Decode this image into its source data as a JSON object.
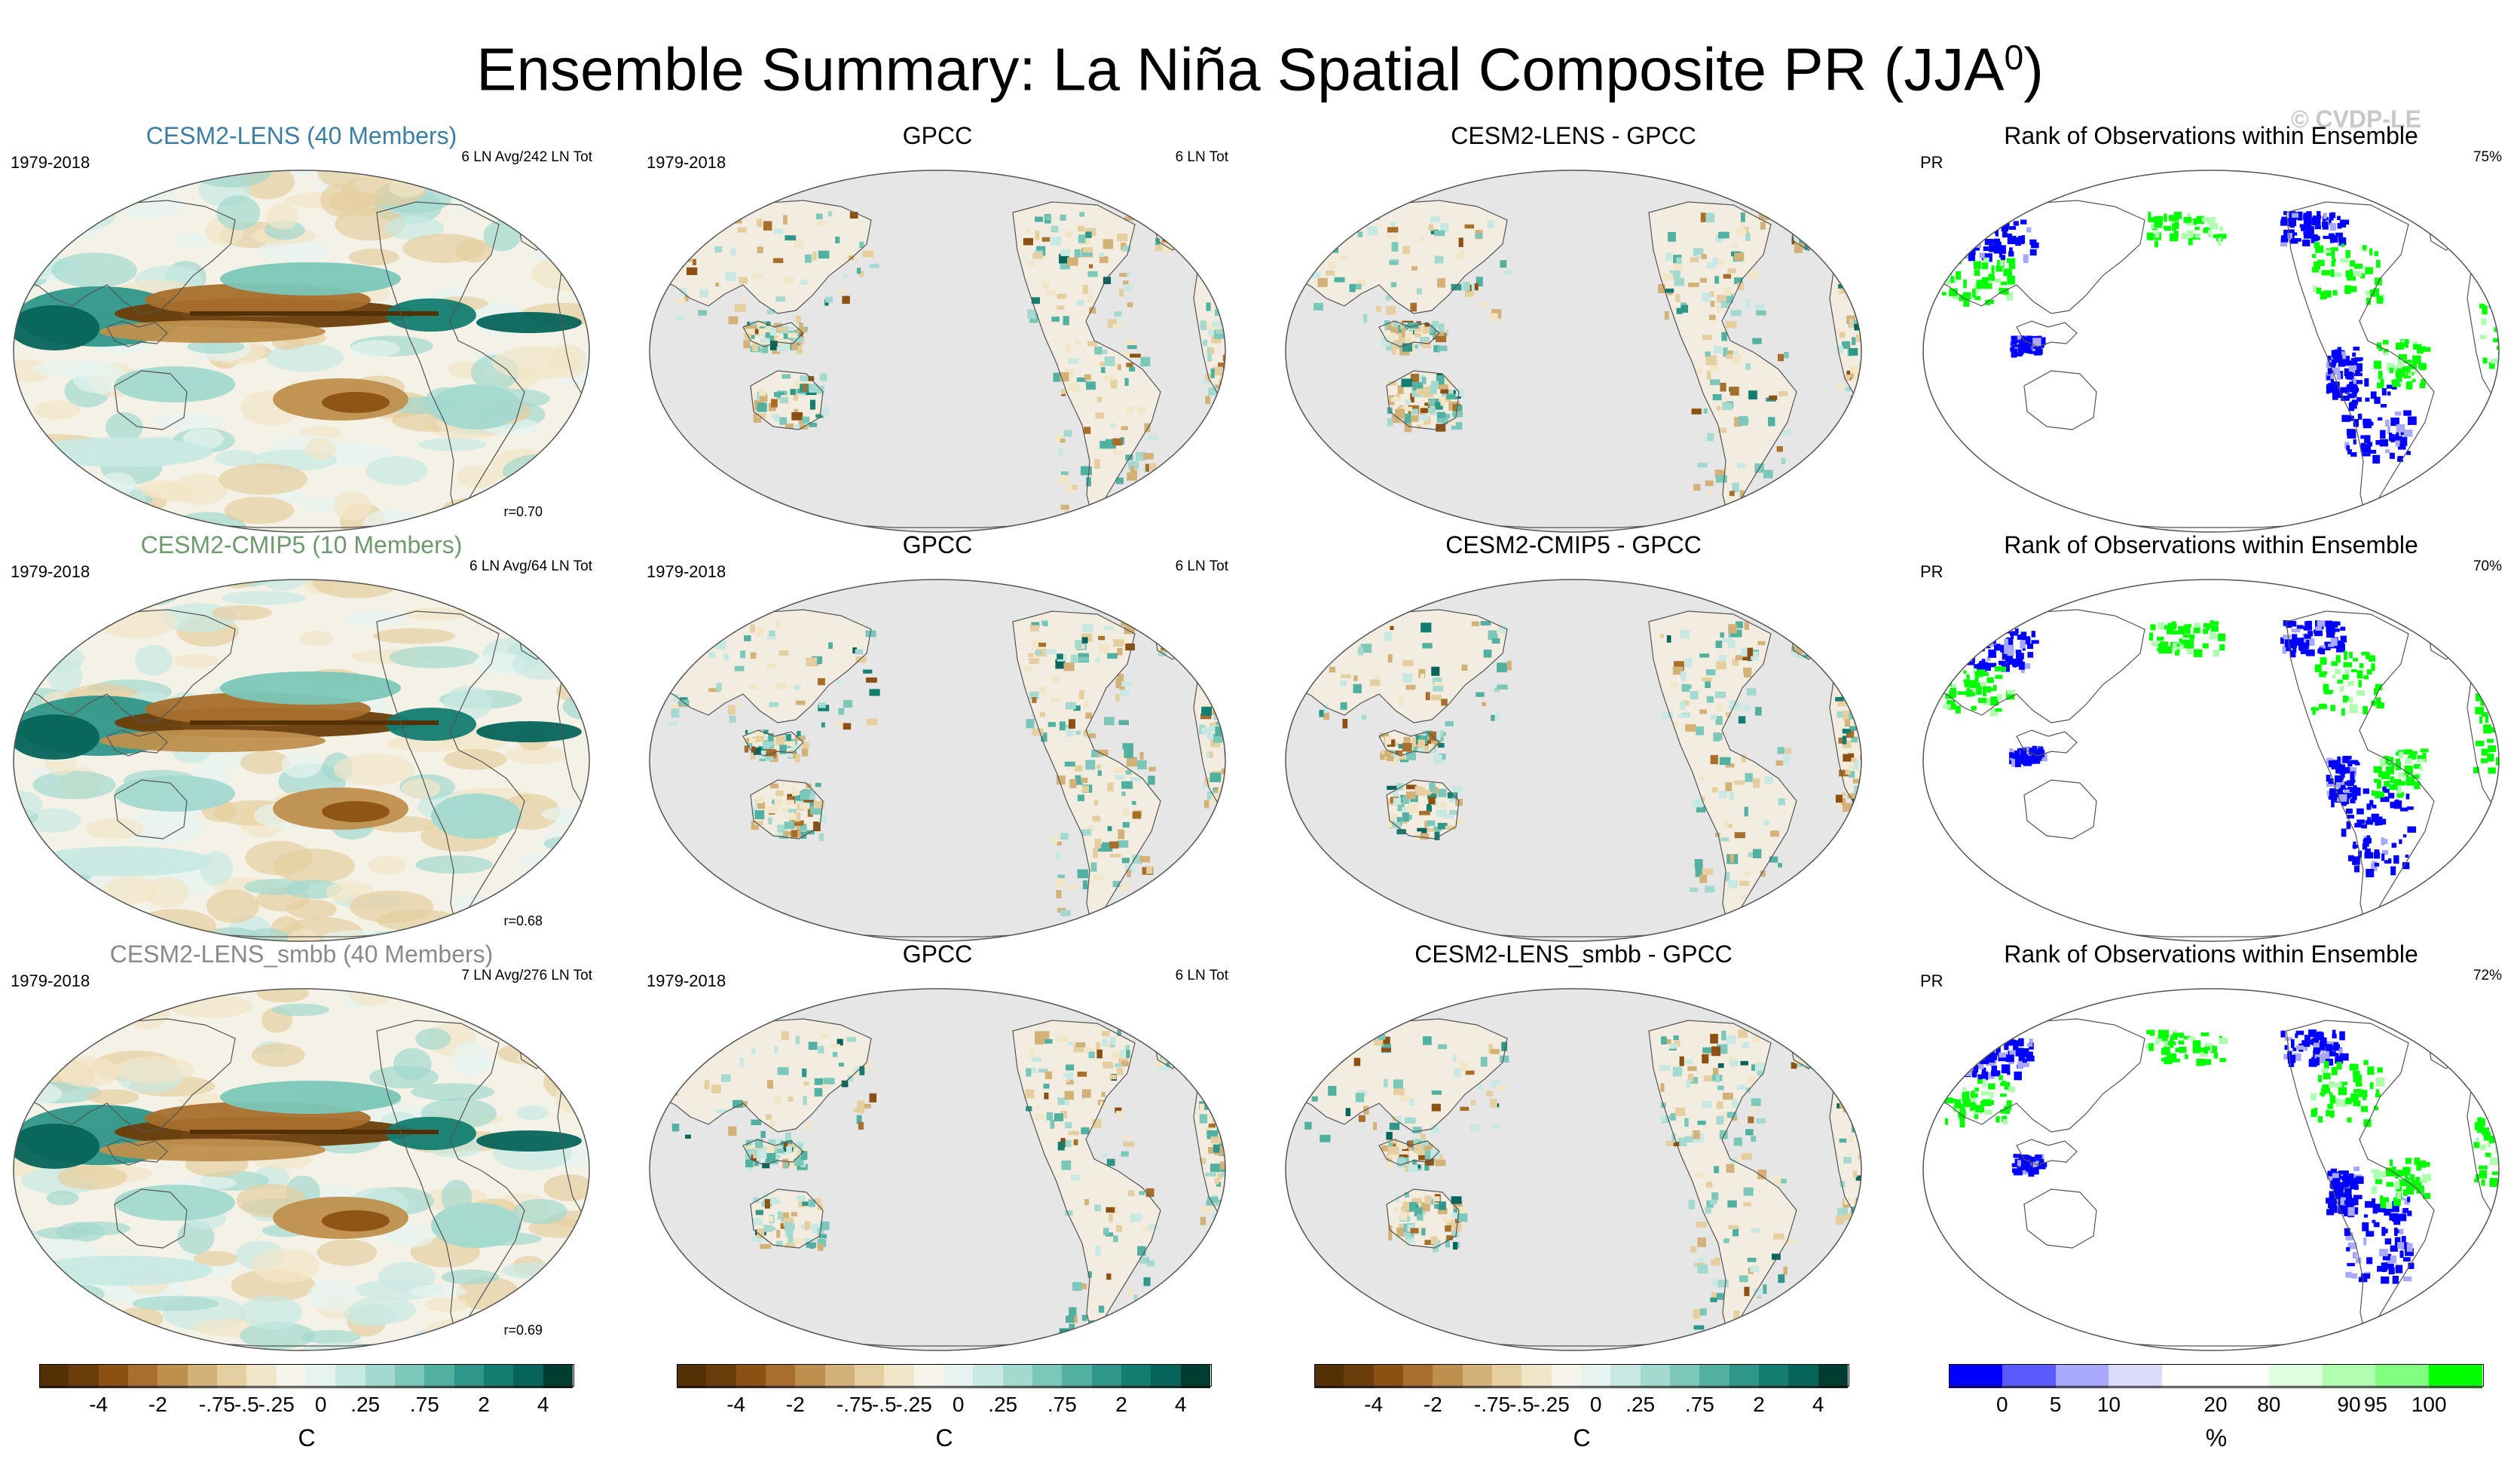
{
  "figure": {
    "title": "Ensemble Summary: La Niña Spatial Composite PR (JJA",
    "title_sup": "0",
    "title_end": ")",
    "watermark": "© CVDP-LE"
  },
  "rows": [
    {
      "model": {
        "title": "CESM2-LENS (40 Members)",
        "title_color": "#3b7ea1",
        "period": "1979-2018",
        "note": "6 LN Avg/242 LN Tot",
        "r": "r=0.70"
      },
      "obs": {
        "title": "GPCC",
        "period": "1979-2018",
        "note": "6 LN Tot"
      },
      "diff": {
        "title": "CESM2-LENS - GPCC"
      },
      "rank": {
        "title": "Rank of Observations within Ensemble",
        "var": "PR",
        "pct": "75%"
      }
    },
    {
      "model": {
        "title": "CESM2-CMIP5 (10 Members)",
        "title_color": "#6e9a6e",
        "period": "1979-2018",
        "note": "6 LN Avg/64 LN Tot",
        "r": "r=0.68"
      },
      "obs": {
        "title": "GPCC",
        "period": "1979-2018",
        "note": "6 LN Tot"
      },
      "diff": {
        "title": "CESM2-CMIP5 - GPCC"
      },
      "rank": {
        "title": "Rank of Observations within Ensemble",
        "var": "PR",
        "pct": "70%"
      }
    },
    {
      "model": {
        "title": "CESM2-LENS_smbb (40 Members)",
        "title_color": "#8a8a8a",
        "period": "1979-2018",
        "note": "7 LN Avg/276 LN Tot",
        "r": "r=0.69"
      },
      "obs": {
        "title": "GPCC",
        "period": "1979-2018",
        "note": "6 LN Tot"
      },
      "diff": {
        "title": "CESM2-LENS_smbb - GPCC"
      },
      "rank": {
        "title": "Rank of Observations within Ensemble",
        "var": "PR",
        "pct": "72%"
      }
    }
  ],
  "colorbars": {
    "precip": {
      "colors": [
        "#543005",
        "#6b3d0a",
        "#8c5112",
        "#a86f2c",
        "#bf8f4d",
        "#d3b27a",
        "#e5cfa0",
        "#f2e6c8",
        "#f7f4ec",
        "#e6f3f1",
        "#c8e9e3",
        "#a3d9cf",
        "#7bc7b9",
        "#52b0a1",
        "#2f9789",
        "#137d70",
        "#06645a",
        "#003c30"
      ],
      "ticks": [
        "-4",
        "-2",
        "-.75",
        "-.5",
        "-.25",
        "0",
        ".25",
        ".75",
        "2",
        "4"
      ],
      "unit": "C"
    },
    "rank": {
      "colors": [
        "#0000ff",
        "#5a5aff",
        "#a8a8ff",
        "#dadafa",
        "#ffffff",
        "#ffffff",
        "#e0ffe0",
        "#b0ffb0",
        "#80ff80",
        "#00ff00"
      ],
      "ticks": [
        "0",
        "5",
        "10",
        "20",
        "80",
        "90",
        "95",
        "100"
      ],
      "unit": "%"
    }
  },
  "chart_data": [
    {
      "type": "heatmap",
      "description": "Global La Niña JJA precipitation composite maps (Robinson projection), 3 rows × 4 columns",
      "columns": [
        "Model ensemble mean composite",
        "GPCC observations",
        "Model minus GPCC difference",
        "Rank of observations within ensemble"
      ],
      "row_models": [
        "CESM2-LENS (40 Members)",
        "CESM2-CMIP5 (10 Members)",
        "CESM2-LENS_smbb (40 Members)"
      ],
      "pattern_correlation": [
        0.7,
        0.68,
        0.69
      ],
      "rank_percent_within": [
        75,
        70,
        72
      ],
      "precip_levels": [
        -4,
        -2,
        -0.75,
        -0.5,
        -0.25,
        0,
        0.25,
        0.75,
        2,
        4
      ],
      "rank_levels": [
        0,
        5,
        10,
        20,
        80,
        90,
        95,
        100
      ]
    }
  ]
}
